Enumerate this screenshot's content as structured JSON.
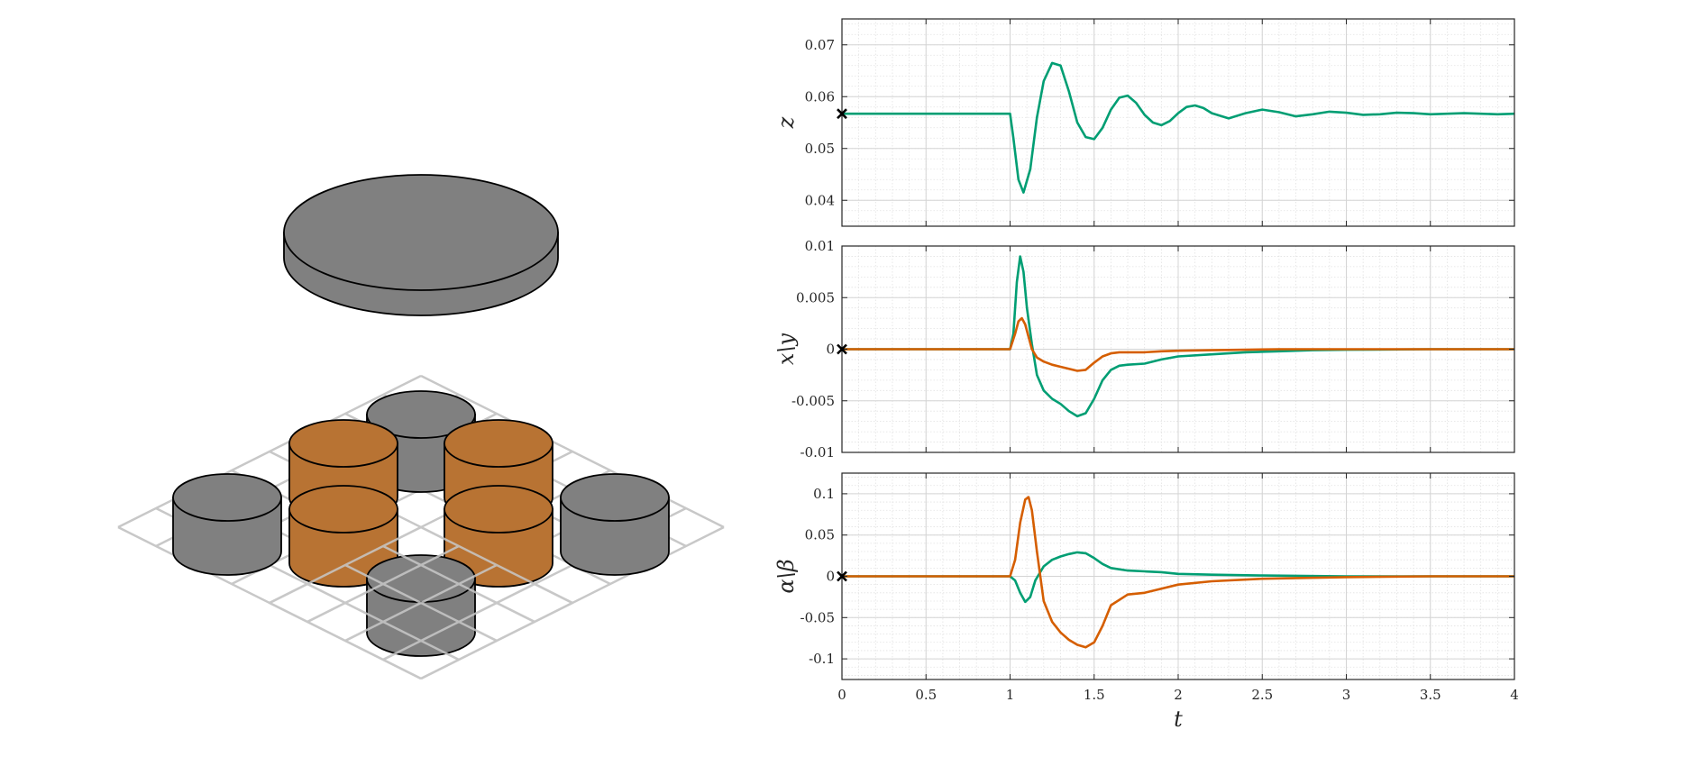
{
  "colors": {
    "series_z": "#009e73",
    "series_xy_1": "#009e73",
    "series_xy_2": "#d55e00",
    "series_ab_1": "#009e73",
    "series_ab_2": "#d55e00",
    "magnet_gray": "#808080",
    "magnet_orange": "#b87333",
    "grid_plate": "#c8c8c8"
  },
  "scene": {
    "levitating_disk": "gray-disk",
    "cylinders": [
      {
        "row": 0,
        "col": 1,
        "color": "gray"
      },
      {
        "row": 1,
        "col": 0,
        "color": "orange"
      },
      {
        "row": 1,
        "col": 2,
        "color": "orange"
      },
      {
        "row": 2,
        "col": -1,
        "color": "gray"
      },
      {
        "row": 2,
        "col": 3,
        "color": "gray"
      },
      {
        "row": 2,
        "col": 0,
        "color": "orange"
      },
      {
        "row": 2,
        "col": 2,
        "color": "orange"
      },
      {
        "row": 3,
        "col": 1,
        "color": "gray"
      }
    ]
  },
  "chart_data": [
    {
      "type": "line",
      "ylabel": "z",
      "ylim": [
        0.035,
        0.075
      ],
      "yticks": [
        0.04,
        0.05,
        0.06,
        0.07
      ],
      "ytick_labels": [
        "0.04",
        "0.05",
        "0.06",
        "0.07"
      ],
      "xlim": [
        0,
        4
      ],
      "grid": true,
      "series": [
        {
          "color_key": "series_z",
          "x": [
            0,
            0.5,
            1.0,
            1.02,
            1.05,
            1.08,
            1.12,
            1.16,
            1.2,
            1.25,
            1.3,
            1.35,
            1.4,
            1.45,
            1.5,
            1.55,
            1.6,
            1.65,
            1.7,
            1.75,
            1.8,
            1.85,
            1.9,
            1.95,
            2.0,
            2.05,
            2.1,
            2.15,
            2.2,
            2.3,
            2.4,
            2.5,
            2.6,
            2.7,
            2.8,
            2.9,
            3.0,
            3.1,
            3.2,
            3.3,
            3.4,
            3.5,
            3.6,
            3.7,
            3.8,
            3.9,
            4.0
          ],
          "y": [
            0.0567,
            0.0567,
            0.0567,
            0.052,
            0.044,
            0.0415,
            0.046,
            0.056,
            0.063,
            0.0665,
            0.066,
            0.061,
            0.055,
            0.0522,
            0.0518,
            0.054,
            0.0575,
            0.0598,
            0.0602,
            0.0588,
            0.0565,
            0.055,
            0.0545,
            0.0553,
            0.0568,
            0.058,
            0.0583,
            0.0578,
            0.0568,
            0.0558,
            0.0568,
            0.0575,
            0.057,
            0.0562,
            0.0566,
            0.0571,
            0.0569,
            0.0565,
            0.0566,
            0.0569,
            0.0568,
            0.0566,
            0.0567,
            0.0568,
            0.0567,
            0.0566,
            0.0567
          ]
        }
      ],
      "start_marker": {
        "x": 0,
        "y": 0.0567
      }
    },
    {
      "type": "line",
      "ylabel": "x\\y",
      "ylim": [
        -0.01,
        0.01
      ],
      "yticks": [
        -0.01,
        -0.005,
        0,
        0.005,
        0.01
      ],
      "ytick_labels": [
        "-0.01",
        "-0.005",
        "0",
        "0.005",
        "0.01"
      ],
      "xlim": [
        0,
        4
      ],
      "grid": true,
      "series": [
        {
          "color_key": "series_xy_1",
          "x": [
            0,
            0.5,
            1.0,
            1.02,
            1.04,
            1.06,
            1.08,
            1.1,
            1.13,
            1.16,
            1.2,
            1.25,
            1.3,
            1.35,
            1.4,
            1.45,
            1.5,
            1.55,
            1.6,
            1.65,
            1.7,
            1.8,
            1.9,
            2.0,
            2.2,
            2.4,
            2.6,
            2.8,
            3.0,
            3.5,
            4.0
          ],
          "y": [
            0,
            0,
            0,
            0.0015,
            0.0065,
            0.009,
            0.0075,
            0.004,
            0.0005,
            -0.0025,
            -0.004,
            -0.0048,
            -0.0053,
            -0.006,
            -0.0065,
            -0.0062,
            -0.0048,
            -0.003,
            -0.002,
            -0.0016,
            -0.0015,
            -0.0014,
            -0.001,
            -0.0007,
            -0.0005,
            -0.0003,
            -0.0002,
            -0.0001,
            -5e-05,
            0,
            0
          ]
        },
        {
          "color_key": "series_xy_2",
          "x": [
            0,
            0.5,
            1.0,
            1.03,
            1.05,
            1.07,
            1.09,
            1.11,
            1.13,
            1.16,
            1.2,
            1.25,
            1.3,
            1.35,
            1.4,
            1.45,
            1.5,
            1.55,
            1.6,
            1.65,
            1.7,
            1.8,
            1.9,
            2.0,
            2.2,
            2.4,
            2.6,
            2.8,
            3.0,
            3.5,
            4.0
          ],
          "y": [
            0,
            0,
            0,
            0.0015,
            0.0027,
            0.003,
            0.0024,
            0.0012,
            0.0,
            -0.0008,
            -0.0012,
            -0.0015,
            -0.0017,
            -0.0019,
            -0.0021,
            -0.002,
            -0.0013,
            -0.0007,
            -0.0004,
            -0.0003,
            -0.0003,
            -0.0003,
            -0.0002,
            -0.00015,
            -0.0001,
            -5e-05,
            0,
            0,
            0,
            0,
            0
          ]
        }
      ],
      "start_marker": {
        "x": 0,
        "y": 0
      }
    },
    {
      "type": "line",
      "ylabel": "α\\β",
      "ylim": [
        -0.125,
        0.125
      ],
      "yticks": [
        -0.1,
        -0.05,
        0,
        0.05,
        0.1
      ],
      "ytick_labels": [
        "-0.1",
        "-0.05",
        "0",
        "0.05",
        "0.1"
      ],
      "xlim": [
        0,
        4
      ],
      "xticks": [
        0,
        0.5,
        1,
        1.5,
        2,
        2.5,
        3,
        3.5,
        4
      ],
      "xtick_labels": [
        "0",
        "0.5",
        "1",
        "1.5",
        "2",
        "2.5",
        "3",
        "3.5",
        "4"
      ],
      "xlabel": "t",
      "grid": true,
      "series": [
        {
          "color_key": "series_ab_1",
          "x": [
            0,
            0.5,
            1.0,
            1.03,
            1.06,
            1.09,
            1.12,
            1.15,
            1.2,
            1.25,
            1.3,
            1.35,
            1.4,
            1.45,
            1.5,
            1.55,
            1.6,
            1.7,
            1.8,
            1.9,
            2.0,
            2.2,
            2.5,
            3.0,
            3.5,
            4.0
          ],
          "y": [
            0,
            0,
            0,
            -0.005,
            -0.02,
            -0.031,
            -0.025,
            -0.005,
            0.012,
            0.02,
            0.024,
            0.027,
            0.029,
            0.028,
            0.022,
            0.015,
            0.01,
            0.007,
            0.006,
            0.005,
            0.003,
            0.002,
            0.001,
            0,
            0,
            0
          ]
        },
        {
          "color_key": "series_ab_2",
          "x": [
            0,
            0.5,
            1.0,
            1.03,
            1.06,
            1.09,
            1.11,
            1.13,
            1.16,
            1.2,
            1.25,
            1.3,
            1.35,
            1.4,
            1.45,
            1.5,
            1.55,
            1.6,
            1.7,
            1.8,
            1.9,
            2.0,
            2.2,
            2.5,
            3.0,
            3.5,
            4.0
          ],
          "y": [
            0,
            0,
            0,
            0.02,
            0.065,
            0.093,
            0.096,
            0.08,
            0.03,
            -0.03,
            -0.055,
            -0.068,
            -0.077,
            -0.083,
            -0.086,
            -0.08,
            -0.06,
            -0.035,
            -0.022,
            -0.02,
            -0.015,
            -0.01,
            -0.006,
            -0.003,
            -0.001,
            0,
            0
          ]
        }
      ],
      "start_marker": {
        "x": 0,
        "y": 0
      }
    }
  ]
}
